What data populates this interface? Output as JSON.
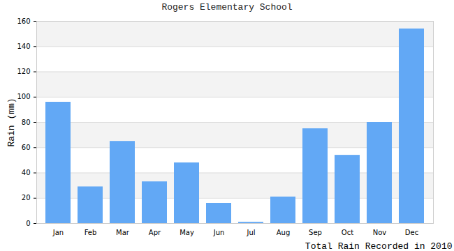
{
  "chart_data": {
    "type": "bar",
    "title": "Rogers Elementary School",
    "x_label": "Total Rain Recorded in 2010",
    "y_label": "Rain (mm)",
    "categories": [
      "Jan",
      "Feb",
      "Mar",
      "Apr",
      "May",
      "Jun",
      "Jul",
      "Aug",
      "Sep",
      "Oct",
      "Nov",
      "Dec"
    ],
    "values": [
      96,
      29,
      65,
      33,
      48,
      16,
      1,
      21,
      75,
      54,
      80,
      154
    ],
    "color": "#62a8f5",
    "ylim": [
      0,
      160
    ],
    "yticks": [
      0,
      20,
      40,
      60,
      80,
      100,
      120,
      140,
      160
    ],
    "grid": true
  }
}
